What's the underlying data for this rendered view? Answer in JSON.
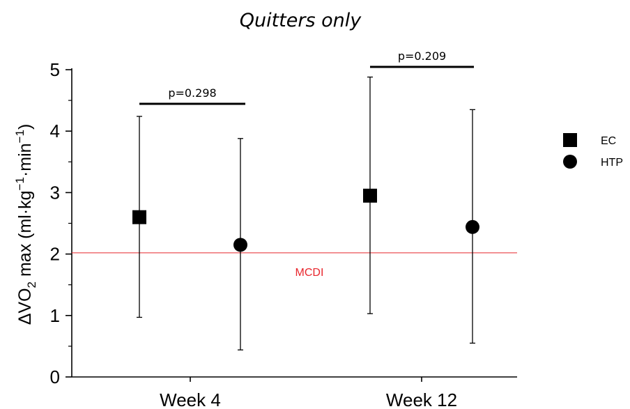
{
  "chart_data": {
    "type": "scatter",
    "title": "Quitters only",
    "ylabel": {
      "delta": "ΔVO",
      "sub2": "2",
      "mid": " max (ml·kg",
      "sup1": "−1",
      "mid2": "·min",
      "sup2": "−1",
      "end": ")"
    },
    "ylim": [
      0,
      5
    ],
    "yticks": [
      0,
      1,
      2,
      3,
      4,
      5
    ],
    "categories": [
      "Week 4",
      "Week 12"
    ],
    "series": [
      {
        "name": "EC",
        "marker": "square",
        "color": "#000000",
        "values": [
          2.6,
          2.95
        ],
        "err_low": [
          0.97,
          1.03
        ],
        "err_high": [
          4.24,
          4.88
        ]
      },
      {
        "name": "HTP",
        "marker": "circle",
        "color": "#000000",
        "values": [
          2.15,
          2.44
        ],
        "err_low": [
          0.44,
          0.55
        ],
        "err_high": [
          3.88,
          4.35
        ]
      }
    ],
    "reference_line": {
      "label": "MCDI",
      "value": 2.02,
      "color": "#e8262d"
    },
    "annotations": [
      "p=0.298",
      "p=0.209"
    ],
    "legend_position": "right"
  }
}
